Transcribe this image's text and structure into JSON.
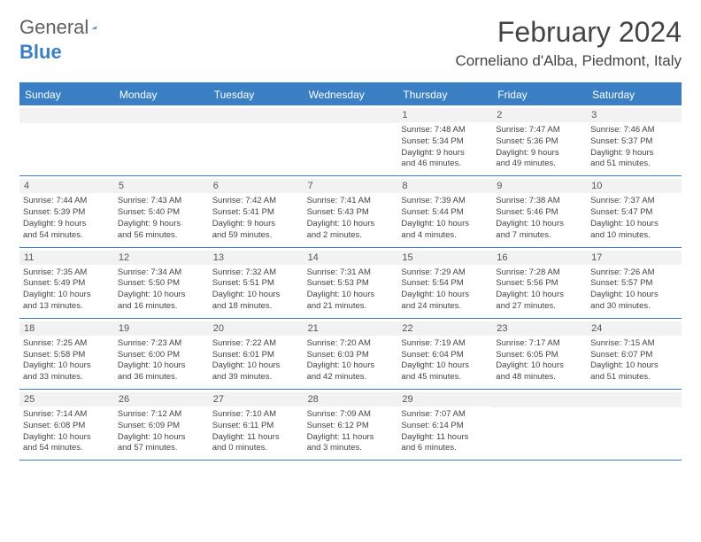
{
  "logo": {
    "text1": "General",
    "text2": "Blue"
  },
  "header": {
    "month": "February 2024",
    "location": "Corneliano d'Alba, Piedmont, Italy"
  },
  "colors": {
    "accent": "#3a7fc4",
    "header_bg": "#3a7fc4",
    "daynum_bg": "#f2f2f2",
    "text": "#444444",
    "border": "#3a7fc4"
  },
  "dayNames": [
    "Sunday",
    "Monday",
    "Tuesday",
    "Wednesday",
    "Thursday",
    "Friday",
    "Saturday"
  ],
  "weeks": [
    [
      null,
      null,
      null,
      null,
      {
        "n": "1",
        "sr": "Sunrise: 7:48 AM",
        "ss": "Sunset: 5:34 PM",
        "dl1": "Daylight: 9 hours",
        "dl2": "and 46 minutes."
      },
      {
        "n": "2",
        "sr": "Sunrise: 7:47 AM",
        "ss": "Sunset: 5:36 PM",
        "dl1": "Daylight: 9 hours",
        "dl2": "and 49 minutes."
      },
      {
        "n": "3",
        "sr": "Sunrise: 7:46 AM",
        "ss": "Sunset: 5:37 PM",
        "dl1": "Daylight: 9 hours",
        "dl2": "and 51 minutes."
      }
    ],
    [
      {
        "n": "4",
        "sr": "Sunrise: 7:44 AM",
        "ss": "Sunset: 5:39 PM",
        "dl1": "Daylight: 9 hours",
        "dl2": "and 54 minutes."
      },
      {
        "n": "5",
        "sr": "Sunrise: 7:43 AM",
        "ss": "Sunset: 5:40 PM",
        "dl1": "Daylight: 9 hours",
        "dl2": "and 56 minutes."
      },
      {
        "n": "6",
        "sr": "Sunrise: 7:42 AM",
        "ss": "Sunset: 5:41 PM",
        "dl1": "Daylight: 9 hours",
        "dl2": "and 59 minutes."
      },
      {
        "n": "7",
        "sr": "Sunrise: 7:41 AM",
        "ss": "Sunset: 5:43 PM",
        "dl1": "Daylight: 10 hours",
        "dl2": "and 2 minutes."
      },
      {
        "n": "8",
        "sr": "Sunrise: 7:39 AM",
        "ss": "Sunset: 5:44 PM",
        "dl1": "Daylight: 10 hours",
        "dl2": "and 4 minutes."
      },
      {
        "n": "9",
        "sr": "Sunrise: 7:38 AM",
        "ss": "Sunset: 5:46 PM",
        "dl1": "Daylight: 10 hours",
        "dl2": "and 7 minutes."
      },
      {
        "n": "10",
        "sr": "Sunrise: 7:37 AM",
        "ss": "Sunset: 5:47 PM",
        "dl1": "Daylight: 10 hours",
        "dl2": "and 10 minutes."
      }
    ],
    [
      {
        "n": "11",
        "sr": "Sunrise: 7:35 AM",
        "ss": "Sunset: 5:49 PM",
        "dl1": "Daylight: 10 hours",
        "dl2": "and 13 minutes."
      },
      {
        "n": "12",
        "sr": "Sunrise: 7:34 AM",
        "ss": "Sunset: 5:50 PM",
        "dl1": "Daylight: 10 hours",
        "dl2": "and 16 minutes."
      },
      {
        "n": "13",
        "sr": "Sunrise: 7:32 AM",
        "ss": "Sunset: 5:51 PM",
        "dl1": "Daylight: 10 hours",
        "dl2": "and 18 minutes."
      },
      {
        "n": "14",
        "sr": "Sunrise: 7:31 AM",
        "ss": "Sunset: 5:53 PM",
        "dl1": "Daylight: 10 hours",
        "dl2": "and 21 minutes."
      },
      {
        "n": "15",
        "sr": "Sunrise: 7:29 AM",
        "ss": "Sunset: 5:54 PM",
        "dl1": "Daylight: 10 hours",
        "dl2": "and 24 minutes."
      },
      {
        "n": "16",
        "sr": "Sunrise: 7:28 AM",
        "ss": "Sunset: 5:56 PM",
        "dl1": "Daylight: 10 hours",
        "dl2": "and 27 minutes."
      },
      {
        "n": "17",
        "sr": "Sunrise: 7:26 AM",
        "ss": "Sunset: 5:57 PM",
        "dl1": "Daylight: 10 hours",
        "dl2": "and 30 minutes."
      }
    ],
    [
      {
        "n": "18",
        "sr": "Sunrise: 7:25 AM",
        "ss": "Sunset: 5:58 PM",
        "dl1": "Daylight: 10 hours",
        "dl2": "and 33 minutes."
      },
      {
        "n": "19",
        "sr": "Sunrise: 7:23 AM",
        "ss": "Sunset: 6:00 PM",
        "dl1": "Daylight: 10 hours",
        "dl2": "and 36 minutes."
      },
      {
        "n": "20",
        "sr": "Sunrise: 7:22 AM",
        "ss": "Sunset: 6:01 PM",
        "dl1": "Daylight: 10 hours",
        "dl2": "and 39 minutes."
      },
      {
        "n": "21",
        "sr": "Sunrise: 7:20 AM",
        "ss": "Sunset: 6:03 PM",
        "dl1": "Daylight: 10 hours",
        "dl2": "and 42 minutes."
      },
      {
        "n": "22",
        "sr": "Sunrise: 7:19 AM",
        "ss": "Sunset: 6:04 PM",
        "dl1": "Daylight: 10 hours",
        "dl2": "and 45 minutes."
      },
      {
        "n": "23",
        "sr": "Sunrise: 7:17 AM",
        "ss": "Sunset: 6:05 PM",
        "dl1": "Daylight: 10 hours",
        "dl2": "and 48 minutes."
      },
      {
        "n": "24",
        "sr": "Sunrise: 7:15 AM",
        "ss": "Sunset: 6:07 PM",
        "dl1": "Daylight: 10 hours",
        "dl2": "and 51 minutes."
      }
    ],
    [
      {
        "n": "25",
        "sr": "Sunrise: 7:14 AM",
        "ss": "Sunset: 6:08 PM",
        "dl1": "Daylight: 10 hours",
        "dl2": "and 54 minutes."
      },
      {
        "n": "26",
        "sr": "Sunrise: 7:12 AM",
        "ss": "Sunset: 6:09 PM",
        "dl1": "Daylight: 10 hours",
        "dl2": "and 57 minutes."
      },
      {
        "n": "27",
        "sr": "Sunrise: 7:10 AM",
        "ss": "Sunset: 6:11 PM",
        "dl1": "Daylight: 11 hours",
        "dl2": "and 0 minutes."
      },
      {
        "n": "28",
        "sr": "Sunrise: 7:09 AM",
        "ss": "Sunset: 6:12 PM",
        "dl1": "Daylight: 11 hours",
        "dl2": "and 3 minutes."
      },
      {
        "n": "29",
        "sr": "Sunrise: 7:07 AM",
        "ss": "Sunset: 6:14 PM",
        "dl1": "Daylight: 11 hours",
        "dl2": "and 6 minutes."
      },
      null,
      null
    ]
  ]
}
